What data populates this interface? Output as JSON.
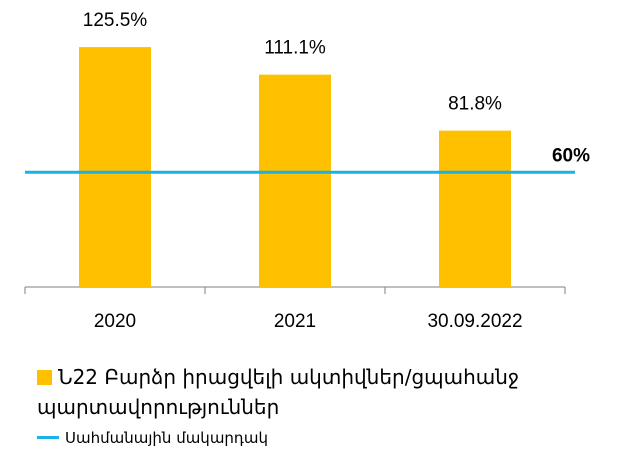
{
  "chart_data": {
    "type": "bar",
    "categories": [
      "2020",
      "2021",
      "30.09.2022"
    ],
    "series": [
      {
        "name": "Ն22 Բարձր իրացվելի ակտիվներ/ցպահանջ պարտավորություններ",
        "color": "#ffc000",
        "values": [
          125.5,
          111.1,
          81.8
        ],
        "value_labels": [
          "125.5%",
          "111.1%",
          "81.8%"
        ]
      }
    ],
    "threshold": {
      "name": "Սահմանային մակարդակ",
      "value": 60,
      "label": "60%",
      "color": "#1ab0e8"
    },
    "ylim": [
      0,
      130
    ]
  }
}
